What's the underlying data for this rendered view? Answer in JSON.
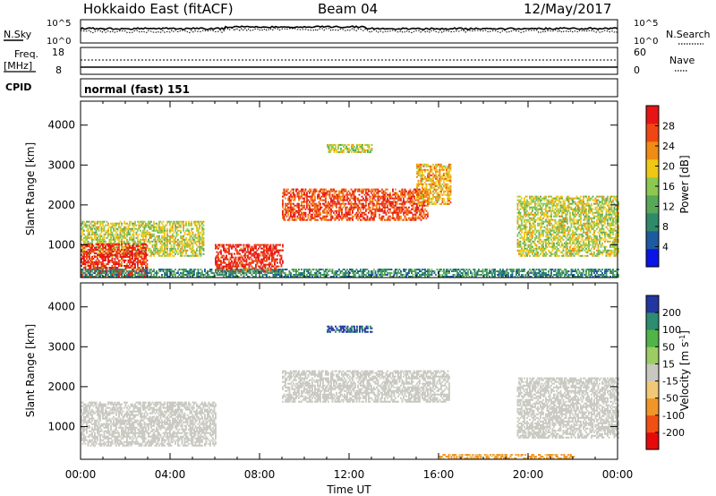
{
  "header": {
    "station": "Hokkaido East (fitACF)",
    "beam": "Beam 04",
    "date": "12/May/2017"
  },
  "noise_panel": {
    "left_label": "N.Sky",
    "right_label": "N.Search",
    "ticks_top": "10^5",
    "ticks_bottom": "10^0"
  },
  "freq_panel": {
    "left_label_1": "Freq.",
    "left_label_2": "[MHz]",
    "left_top": "18",
    "left_bottom": "8",
    "right_label": "Nave",
    "right_top": "60",
    "right_bottom": "0"
  },
  "cpid_panel": {
    "label": "CPID",
    "value": "normal (fast) 151"
  },
  "colors": {
    "power": [
      "#0a14e6",
      "#1e5aa0",
      "#2f8a6a",
      "#58a85a",
      "#8cc850",
      "#f0c814",
      "#f08c14",
      "#f04614",
      "#e61414"
    ],
    "velocity": [
      "#e60a0a",
      "#f05014",
      "#f09628",
      "#f0c878",
      "#c8c8c0",
      "#9ccc64",
      "#50b446",
      "#2d8c6e",
      "#2337a0"
    ]
  },
  "chart_data": [
    {
      "type": "heatmap",
      "panel": "power",
      "xlabel": "",
      "ylabel": "Slant Range [km]",
      "x_ticks": [],
      "y_ticks": [
        "1000",
        "2000",
        "3000",
        "4000"
      ],
      "xlim": [
        "00:00",
        "24:00"
      ],
      "ylim": [
        180,
        4600
      ],
      "colorbar": {
        "label": "Power [dB]",
        "ticks": [
          "4",
          "8",
          "12",
          "16",
          "20",
          "24",
          "28"
        ],
        "range": [
          0,
          33
        ]
      },
      "regions": [
        {
          "t0": 0.0,
          "t1": 5.5,
          "r0": 700,
          "r1": 1600,
          "value": 18
        },
        {
          "t0": 0.0,
          "t1": 3.0,
          "r0": 180,
          "r1": 1000,
          "value": 30
        },
        {
          "t0": 6.0,
          "t1": 9.0,
          "r0": 300,
          "r1": 1000,
          "value": 30
        },
        {
          "t0": 9.0,
          "t1": 15.5,
          "r0": 1600,
          "r1": 2400,
          "value": 28
        },
        {
          "t0": 15.0,
          "t1": 16.5,
          "r0": 2000,
          "r1": 3000,
          "value": 22
        },
        {
          "t0": 11.0,
          "t1": 13.0,
          "r0": 3300,
          "r1": 3500,
          "value": 18
        },
        {
          "t0": 19.5,
          "t1": 24.0,
          "r0": 700,
          "r1": 2200,
          "value": 18
        },
        {
          "t0": 0.0,
          "t1": 24.0,
          "r0": 180,
          "r1": 400,
          "value": 10
        }
      ]
    },
    {
      "type": "heatmap",
      "panel": "velocity",
      "xlabel": "Time UT",
      "ylabel": "Slant Range [km]",
      "x_ticks": [
        "00:00",
        "04:00",
        "08:00",
        "12:00",
        "16:00",
        "20:00",
        "00:00"
      ],
      "y_ticks": [
        "1000",
        "2000",
        "3000",
        "4000"
      ],
      "xlim": [
        "00:00",
        "24:00"
      ],
      "ylim": [
        180,
        4600
      ],
      "colorbar": {
        "label": "Velocity [m s^-1]",
        "ticks": [
          "-200",
          "-100",
          "-50",
          "-15",
          "15",
          "50",
          "100",
          "200"
        ],
        "range": [
          -250,
          250
        ]
      },
      "regions": [
        {
          "t0": 0.0,
          "t1": 6.0,
          "r0": 500,
          "r1": 1600,
          "value": 0
        },
        {
          "t0": 9.0,
          "t1": 16.5,
          "r0": 1600,
          "r1": 2400,
          "value": 0
        },
        {
          "t0": 11.0,
          "t1": 13.0,
          "r0": 3350,
          "r1": 3500,
          "value": 200
        },
        {
          "t0": 19.5,
          "t1": 24.0,
          "r0": 700,
          "r1": 2200,
          "value": 0
        },
        {
          "t0": 16.0,
          "t1": 22.0,
          "r0": 180,
          "r1": 300,
          "value": -90
        }
      ]
    }
  ]
}
